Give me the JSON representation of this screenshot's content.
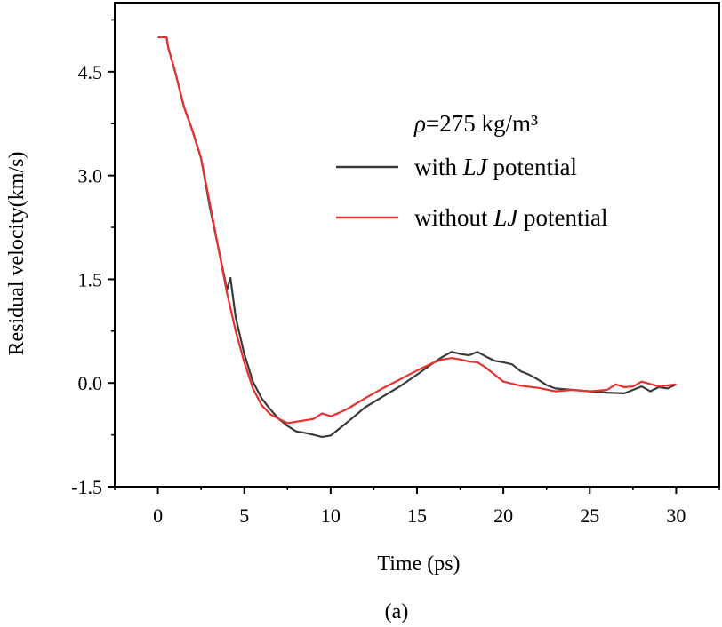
{
  "chart_data": {
    "type": "line",
    "title": "",
    "xlabel": "Time (ps)",
    "ylabel": "Residual velocity(km/s)",
    "caption": "(a)",
    "xlim": [
      -2.5,
      32.5
    ],
    "ylim": [
      -1.5,
      5.5
    ],
    "xticks": [
      0,
      5,
      10,
      15,
      20,
      25,
      30
    ],
    "yticks": [
      -1.5,
      0.0,
      1.5,
      3.0,
      4.5
    ],
    "xtick_labels": [
      "0",
      "5",
      "10",
      "15",
      "20",
      "25",
      "30"
    ],
    "ytick_labels": [
      "-1.5",
      "0.0",
      "1.5",
      "3.0",
      "4.5"
    ],
    "grid": false,
    "legend": {
      "position": "top-right",
      "header_symbol": "ρ",
      "header_value": "=275 kg/m³"
    },
    "series": [
      {
        "name": "with LJ potential",
        "legend_prefix": "with ",
        "legend_italic": "LJ",
        "legend_suffix": " potential",
        "color": "#3a3a3a",
        "x": [
          0,
          0.5,
          0.6,
          1,
          1.5,
          2,
          2.5,
          3,
          3.5,
          4,
          4.2,
          4.5,
          5,
          5.5,
          6,
          6.5,
          7,
          7.5,
          8,
          8.5,
          9,
          9.5,
          10,
          10.5,
          11,
          12,
          13,
          14,
          15,
          16,
          16.5,
          17,
          17.5,
          18,
          18.5,
          19,
          19.5,
          20,
          20.5,
          21,
          21.5,
          22,
          22.5,
          23,
          24,
          25,
          26,
          27,
          28,
          28.5,
          29,
          29.5,
          30
        ],
        "y": [
          5.0,
          5.0,
          4.85,
          4.5,
          4.0,
          3.65,
          3.25,
          2.55,
          1.95,
          1.35,
          1.52,
          0.95,
          0.42,
          0.02,
          -0.22,
          -0.38,
          -0.52,
          -0.62,
          -0.7,
          -0.72,
          -0.75,
          -0.78,
          -0.76,
          -0.66,
          -0.56,
          -0.35,
          -0.2,
          -0.05,
          0.12,
          0.3,
          0.38,
          0.45,
          0.42,
          0.4,
          0.45,
          0.38,
          0.32,
          0.3,
          0.27,
          0.17,
          0.12,
          0.05,
          -0.03,
          -0.08,
          -0.1,
          -0.12,
          -0.14,
          -0.15,
          -0.05,
          -0.12,
          -0.06,
          -0.08,
          -0.02
        ]
      },
      {
        "name": "without LJ potential",
        "legend_prefix": "without ",
        "legend_italic": "LJ",
        "legend_suffix": " potential",
        "color": "#e8312f",
        "x": [
          0,
          0.5,
          0.6,
          1,
          1.5,
          2,
          2.5,
          3,
          3.5,
          4,
          4.5,
          5,
          5.5,
          6,
          6.5,
          7,
          7.5,
          8,
          8.5,
          9,
          9.5,
          10,
          10.5,
          11,
          12,
          13,
          14,
          15,
          16,
          16.5,
          17,
          17.5,
          18,
          18.5,
          19,
          19.5,
          20,
          21,
          22,
          23,
          24,
          25,
          26,
          26.5,
          27,
          27.5,
          28,
          29,
          30
        ],
        "y": [
          5.0,
          5.0,
          4.85,
          4.5,
          4.0,
          3.65,
          3.25,
          2.6,
          1.95,
          1.3,
          0.75,
          0.3,
          -0.08,
          -0.32,
          -0.45,
          -0.52,
          -0.58,
          -0.56,
          -0.54,
          -0.52,
          -0.44,
          -0.48,
          -0.43,
          -0.37,
          -0.22,
          -0.08,
          0.05,
          0.18,
          0.3,
          0.34,
          0.36,
          0.34,
          0.31,
          0.3,
          0.22,
          0.12,
          0.02,
          -0.04,
          -0.07,
          -0.12,
          -0.1,
          -0.12,
          -0.1,
          -0.02,
          -0.06,
          -0.05,
          0.02,
          -0.05,
          -0.02
        ]
      }
    ]
  }
}
